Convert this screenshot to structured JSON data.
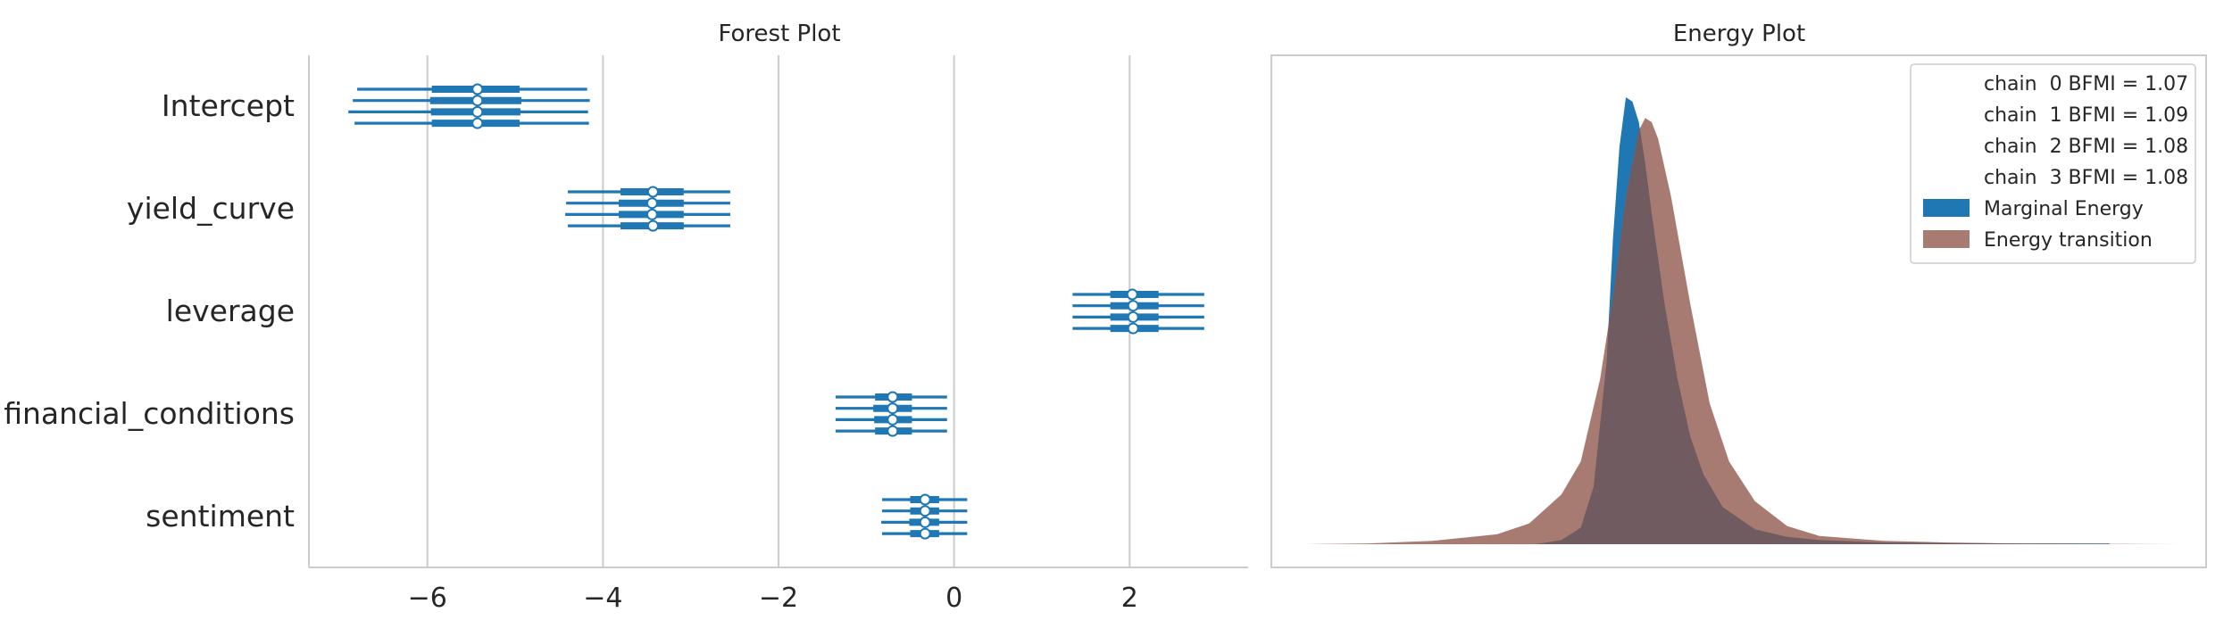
{
  "chart_data": [
    {
      "type": "forest",
      "title": "Forest Plot",
      "xticks": [
        -6,
        -4,
        -2,
        0,
        2
      ],
      "xtick_labels": [
        "−6",
        "−4",
        "−2",
        "0",
        "2"
      ],
      "xlim": [
        -7.35,
        3.35
      ],
      "grid": "vertical",
      "parameters": [
        "Intercept",
        "yield_curve",
        "leverage",
        "financial_conditions",
        "sentiment"
      ],
      "chains": 4,
      "estimates": [
        {
          "name": "Intercept",
          "chains": [
            {
              "median": -5.43,
              "inner": [
                -5.95,
                -4.95
              ],
              "outer": [
                -6.8,
                -4.18
              ]
            },
            {
              "median": -5.43,
              "inner": [
                -5.97,
                -4.93
              ],
              "outer": [
                -6.85,
                -4.15
              ]
            },
            {
              "median": -5.43,
              "inner": [
                -5.96,
                -4.94
              ],
              "outer": [
                -6.9,
                -4.17
              ]
            },
            {
              "median": -5.43,
              "inner": [
                -5.95,
                -4.95
              ],
              "outer": [
                -6.83,
                -4.16
              ]
            }
          ]
        },
        {
          "name": "yield_curve",
          "chains": [
            {
              "median": -3.43,
              "inner": [
                -3.8,
                -3.08
              ],
              "outer": [
                -4.4,
                -2.55
              ]
            },
            {
              "median": -3.44,
              "inner": [
                -3.82,
                -3.08
              ],
              "outer": [
                -4.42,
                -2.55
              ]
            },
            {
              "median": -3.44,
              "inner": [
                -3.82,
                -3.08
              ],
              "outer": [
                -4.43,
                -2.55
              ]
            },
            {
              "median": -3.43,
              "inner": [
                -3.8,
                -3.08
              ],
              "outer": [
                -4.4,
                -2.55
              ]
            }
          ]
        },
        {
          "name": "leverage",
          "chains": [
            {
              "median": 2.03,
              "inner": [
                1.78,
                2.33
              ],
              "outer": [
                1.35,
                2.85
              ]
            },
            {
              "median": 2.04,
              "inner": [
                1.78,
                2.33
              ],
              "outer": [
                1.35,
                2.85
              ]
            },
            {
              "median": 2.04,
              "inner": [
                1.78,
                2.33
              ],
              "outer": [
                1.35,
                2.85
              ]
            },
            {
              "median": 2.04,
              "inner": [
                1.78,
                2.33
              ],
              "outer": [
                1.35,
                2.85
              ]
            }
          ]
        },
        {
          "name": "financial_conditions",
          "chains": [
            {
              "median": -0.7,
              "inner": [
                -0.9,
                -0.48
              ],
              "outer": [
                -1.35,
                -0.08
              ]
            },
            {
              "median": -0.7,
              "inner": [
                -0.92,
                -0.48
              ],
              "outer": [
                -1.35,
                -0.08
              ]
            },
            {
              "median": -0.7,
              "inner": [
                -0.91,
                -0.48
              ],
              "outer": [
                -1.35,
                -0.08
              ]
            },
            {
              "median": -0.7,
              "inner": [
                -0.9,
                -0.48
              ],
              "outer": [
                -1.35,
                -0.08
              ]
            }
          ]
        },
        {
          "name": "sentiment",
          "chains": [
            {
              "median": -0.33,
              "inner": [
                -0.5,
                -0.17
              ],
              "outer": [
                -0.82,
                0.15
              ]
            },
            {
              "median": -0.33,
              "inner": [
                -0.5,
                -0.17
              ],
              "outer": [
                -0.82,
                0.15
              ]
            },
            {
              "median": -0.33,
              "inner": [
                -0.51,
                -0.17
              ],
              "outer": [
                -0.83,
                0.15
              ]
            },
            {
              "median": -0.33,
              "inner": [
                -0.5,
                -0.17
              ],
              "outer": [
                -0.82,
                0.15
              ]
            }
          ]
        }
      ],
      "colors": {
        "interval": "#1f77b4",
        "marker_fill": "#ffffff",
        "grid": "#cccccc",
        "frame": "#cccccc"
      }
    },
    {
      "type": "area",
      "title": "Energy Plot",
      "xlim": [
        -5.5,
        9.0
      ],
      "ylim": [
        0,
        0.58
      ],
      "grid": "off",
      "axis_ticks": "none",
      "legend": {
        "placement": "top-right",
        "entries": [
          {
            "label": "chain  0 BFMI = 1.07",
            "marker": "none"
          },
          {
            "label": "chain  1 BFMI = 1.09",
            "marker": "none"
          },
          {
            "label": "chain  2 BFMI = 1.08",
            "marker": "none"
          },
          {
            "label": "chain  3 BFMI = 1.08",
            "marker": "none"
          },
          {
            "label": "Marginal Energy",
            "marker": "patch",
            "color": "#1f77b4"
          },
          {
            "label": "Energy transition",
            "marker": "patch",
            "color": "#a87b72"
          }
        ]
      },
      "series": [
        {
          "name": "Marginal Energy",
          "color": "#1f77b4",
          "x": [
            -4.8,
            -3.0,
            -2.0,
            -1.4,
            -1.0,
            -0.7,
            -0.5,
            -0.3,
            -0.2,
            -0.1,
            0.0,
            0.1,
            0.2,
            0.3,
            0.4,
            0.6,
            0.8,
            1.0,
            1.2,
            1.5,
            2.0,
            2.5,
            3.0,
            4.0,
            5.0,
            6.0,
            7.5
          ],
          "y": [
            0.0,
            0.0,
            0.0,
            0.0,
            0.005,
            0.02,
            0.07,
            0.22,
            0.37,
            0.48,
            0.54,
            0.535,
            0.51,
            0.46,
            0.4,
            0.29,
            0.2,
            0.13,
            0.085,
            0.045,
            0.018,
            0.009,
            0.005,
            0.002,
            0.0015,
            0.001,
            0.001
          ]
        },
        {
          "name": "Energy transition",
          "color": "#a87b72",
          "x": [
            -5.0,
            -4.0,
            -3.0,
            -2.0,
            -1.5,
            -1.0,
            -0.7,
            -0.4,
            -0.2,
            0.0,
            0.2,
            0.3,
            0.4,
            0.5,
            0.7,
            1.0,
            1.3,
            1.6,
            2.0,
            2.5,
            3.0,
            4.0,
            5.0,
            6.0,
            7.0,
            8.6
          ],
          "y": [
            0.0,
            0.001,
            0.004,
            0.012,
            0.025,
            0.06,
            0.1,
            0.2,
            0.3,
            0.42,
            0.5,
            0.515,
            0.51,
            0.49,
            0.42,
            0.29,
            0.17,
            0.1,
            0.052,
            0.022,
            0.01,
            0.004,
            0.002,
            0.001,
            0.0005,
            0.0
          ]
        }
      ],
      "colors": {
        "overlap": "#6f5b60",
        "frame": "#cccccc"
      }
    }
  ]
}
